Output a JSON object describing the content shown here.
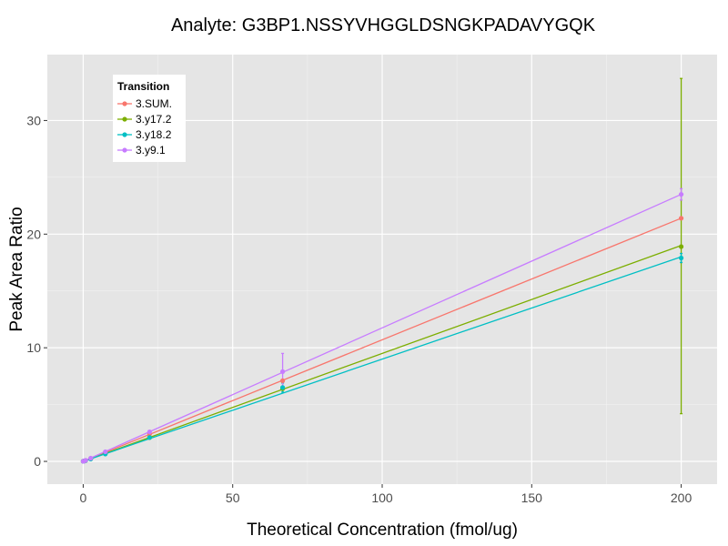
{
  "chart_data": {
    "type": "line",
    "title": "Analyte: G3BP1.NSSYVHGGLDSNGKPADAVYGQK",
    "xlabel": "Theoretical Concentration (fmol/ug)",
    "ylabel": "Peak Area Ratio",
    "xlim": [
      -12,
      212
    ],
    "ylim": [
      -2,
      35.8
    ],
    "x_ticks": [
      0,
      50,
      100,
      150,
      200
    ],
    "y_ticks": [
      0,
      10,
      20,
      30
    ],
    "grid": true,
    "legend": {
      "title": "Transition",
      "placement": "top-left",
      "entries": [
        "3.SUM.",
        "3.y17.2",
        "3.y18.2",
        "3.y9.1"
      ]
    },
    "x": [
      0,
      0.3,
      0.8,
      2.5,
      7.4,
      22.2,
      66.7,
      200
    ],
    "series": [
      {
        "name": "3.SUM.",
        "color": "#F8766D",
        "fit_line": [
          [
            0,
            0
          ],
          [
            200,
            21.4
          ]
        ],
        "points": [
          [
            0,
            0.01
          ],
          [
            0.3,
            0.03
          ],
          [
            0.8,
            0.08
          ],
          [
            2.5,
            0.26
          ],
          [
            7.4,
            0.8
          ],
          [
            22.2,
            2.4
          ],
          [
            66.7,
            7.1
          ],
          [
            200,
            21.4
          ]
        ],
        "error_bars": []
      },
      {
        "name": "3.y17.2",
        "color": "#7CAE00",
        "fit_line": [
          [
            0,
            0
          ],
          [
            200,
            19.0
          ]
        ],
        "points": [
          [
            0,
            0.01
          ],
          [
            0.3,
            0.03
          ],
          [
            0.8,
            0.07
          ],
          [
            2.5,
            0.22
          ],
          [
            7.4,
            0.7
          ],
          [
            22.2,
            2.1
          ],
          [
            66.7,
            6.4
          ],
          [
            200,
            18.9
          ]
        ],
        "error_bars": [
          [
            200,
            4.2,
            33.7
          ]
        ]
      },
      {
        "name": "3.y18.2",
        "color": "#00BFC4",
        "fit_line": [
          [
            0,
            0
          ],
          [
            200,
            18.0
          ]
        ],
        "points": [
          [
            0,
            0.01
          ],
          [
            0.3,
            0.03
          ],
          [
            0.8,
            0.07
          ],
          [
            2.5,
            0.21
          ],
          [
            7.4,
            0.65
          ],
          [
            22.2,
            2.1
          ],
          [
            66.7,
            6.5
          ],
          [
            200,
            17.9
          ]
        ],
        "error_bars": [
          [
            66.7,
            6.1,
            6.9
          ],
          [
            200,
            17.5,
            18.3
          ]
        ]
      },
      {
        "name": "3.y9.1",
        "color": "#C77CFF",
        "fit_line": [
          [
            0,
            0
          ],
          [
            200,
            23.5
          ]
        ],
        "points": [
          [
            0,
            0.01
          ],
          [
            0.3,
            0.03
          ],
          [
            0.8,
            0.09
          ],
          [
            2.5,
            0.28
          ],
          [
            7.4,
            0.85
          ],
          [
            22.2,
            2.6
          ],
          [
            66.7,
            7.9
          ],
          [
            200,
            23.5
          ]
        ],
        "error_bars": [
          [
            66.7,
            6.5,
            9.5
          ],
          [
            200,
            23.0,
            24.0
          ]
        ]
      }
    ]
  }
}
